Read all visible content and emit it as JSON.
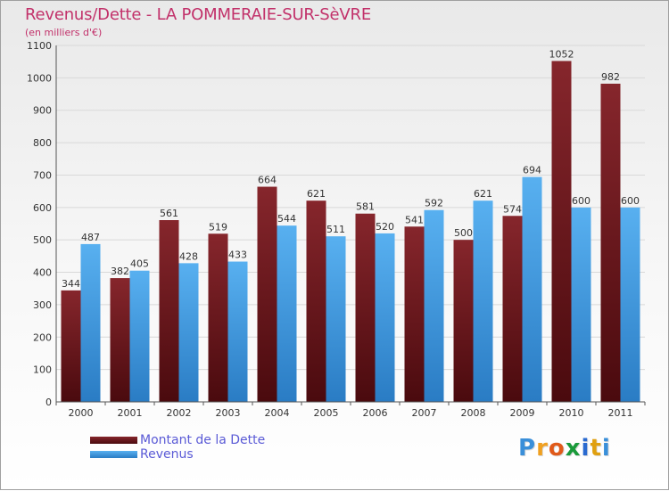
{
  "header": {
    "title": "Revenus/Dette - LA POMMERAIE-SUR-SèVRE",
    "subtitle": "(en milliers d'€)"
  },
  "legend": {
    "debt_label": "Montant de la Dette",
    "revenue_label": "Revenus"
  },
  "logo": {
    "letters": [
      "P",
      "r",
      "o",
      "x",
      "i",
      "t",
      "i"
    ],
    "colors": [
      "#3a8fd9",
      "#f0a020",
      "#e05a1a",
      "#1a9a3a",
      "#2a6ad0",
      "#e0a010",
      "#3a8fd9"
    ]
  },
  "colors": {
    "debt": "#7a1e24",
    "debt_dark": "#4a0a0e",
    "revenue": "#4aa3e8",
    "revenue_dark": "#2a7cc4",
    "axis_text": "#333333",
    "title": "#c2316a"
  },
  "chart_data": {
    "type": "bar",
    "title": "Revenus/Dette - LA POMMERAIE-SUR-SèVRE",
    "ylabel": "(en milliers d'€)",
    "xlabel": "",
    "categories": [
      "2000",
      "2001",
      "2002",
      "2003",
      "2004",
      "2005",
      "2006",
      "2007",
      "2008",
      "2009",
      "2010",
      "2011"
    ],
    "series": [
      {
        "name": "Montant de la Dette",
        "values": [
          344,
          382,
          561,
          519,
          664,
          621,
          581,
          541,
          500,
          574,
          1052,
          982
        ]
      },
      {
        "name": "Revenus",
        "values": [
          487,
          405,
          428,
          433,
          544,
          511,
          520,
          592,
          621,
          694,
          600,
          600
        ]
      }
    ],
    "ylim": [
      0,
      1100
    ],
    "yticks": [
      0,
      100,
      200,
      300,
      400,
      500,
      600,
      700,
      800,
      900,
      1000,
      1100
    ],
    "grid": true,
    "legend_position": "bottom-left"
  }
}
